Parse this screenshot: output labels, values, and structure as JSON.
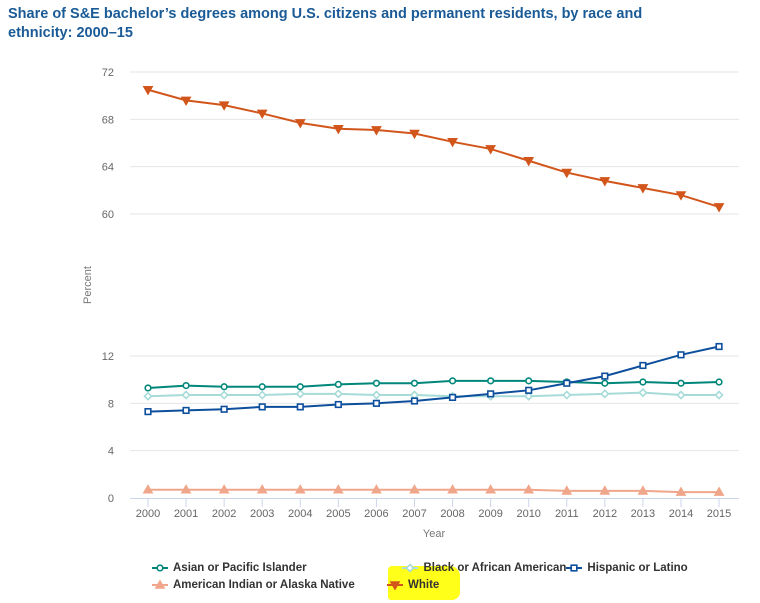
{
  "chart_data": {
    "type": "line",
    "title": "Share of S&E bachelor’s degrees among U.S. citizens and permanent residents, by race and ethnicity: 2000–15",
    "xlabel": "Year",
    "ylabel": "Percent",
    "x": [
      "2000",
      "2001",
      "2002",
      "2003",
      "2004",
      "2005",
      "2006",
      "2007",
      "2008",
      "2009",
      "2010",
      "2011",
      "2012",
      "2013",
      "2014",
      "2015"
    ],
    "y_axis_broken": true,
    "y_ranges": [
      [
        0,
        12
      ],
      [
        60,
        72
      ]
    ],
    "y_ticks_lower": [
      "0",
      "4",
      "8",
      "12"
    ],
    "y_ticks_upper": [
      "60",
      "64",
      "68",
      "72"
    ],
    "grid": true,
    "legend_position": "bottom",
    "series": [
      {
        "name": "Asian or Pacific Islander",
        "color": "#00877a",
        "marker": "circle",
        "values": [
          9.3,
          9.5,
          9.4,
          9.4,
          9.4,
          9.6,
          9.7,
          9.7,
          9.9,
          9.9,
          9.9,
          9.8,
          9.7,
          9.8,
          9.7,
          9.8
        ]
      },
      {
        "name": "Black or African American",
        "color": "#a6dbd8",
        "marker": "diamond",
        "values": [
          8.6,
          8.7,
          8.7,
          8.7,
          8.8,
          8.8,
          8.7,
          8.7,
          8.6,
          8.6,
          8.6,
          8.7,
          8.8,
          8.9,
          8.7,
          8.7
        ]
      },
      {
        "name": "Hispanic or Latino",
        "color": "#0d4f9c",
        "marker": "square",
        "values": [
          7.3,
          7.4,
          7.5,
          7.7,
          7.7,
          7.9,
          8.0,
          8.2,
          8.5,
          8.8,
          9.1,
          9.7,
          10.3,
          11.2,
          12.1,
          12.8
        ]
      },
      {
        "name": "American Indian or Alaska Native",
        "color": "#f0a68a",
        "marker": "triangle",
        "values": [
          0.7,
          0.7,
          0.7,
          0.7,
          0.7,
          0.7,
          0.7,
          0.7,
          0.7,
          0.7,
          0.7,
          0.6,
          0.6,
          0.6,
          0.5,
          0.5
        ]
      },
      {
        "name": "White",
        "color": "#d2561c",
        "marker": "triangle-down",
        "highlighted": true,
        "values": [
          70.5,
          69.6,
          69.2,
          68.5,
          67.7,
          67.2,
          67.1,
          66.8,
          66.1,
          65.5,
          64.5,
          63.5,
          62.8,
          62.2,
          61.6,
          60.6
        ]
      }
    ]
  },
  "legend": {
    "rows": [
      [
        0,
        1,
        2
      ],
      [
        3,
        4
      ]
    ],
    "highlight_color": "#ffff1a"
  }
}
